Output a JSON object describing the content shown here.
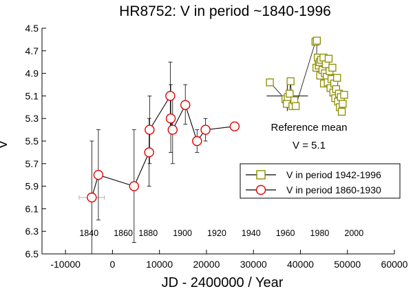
{
  "chart_data": {
    "type": "scatter",
    "title": "HR8752:  V in period ~1840-1996",
    "xlabel": "JD - 2400000 /  Year",
    "ylabel": "V",
    "xlim": [
      -15000,
      60000
    ],
    "ylim": [
      4.5,
      6.5
    ],
    "y_inverted": true,
    "x_ticks": [
      -10000,
      0,
      10000,
      20000,
      30000,
      40000,
      50000,
      60000
    ],
    "x_tick_labels": [
      "-10000",
      "0",
      "10000",
      "20000",
      "30000",
      "40000",
      "50000",
      "60000"
    ],
    "y_ticks": [
      4.5,
      4.7,
      4.9,
      5.1,
      5.3,
      5.5,
      5.7,
      5.9,
      6.1,
      6.3,
      6.5
    ],
    "y_tick_labels": [
      "4.5",
      "4.7",
      "4.9",
      "5.1",
      "5.3",
      "5.5",
      "5.7",
      "5.9",
      "6.1",
      "6.3",
      "6.5"
    ],
    "year_axis": [
      {
        "label": "1840",
        "jd": -5000
      },
      {
        "label": "1860",
        "jd": 2300
      },
      {
        "label": "1880",
        "jd": 7600
      },
      {
        "label": "1900",
        "jd": 14900
      },
      {
        "label": "1920",
        "jd": 22200
      },
      {
        "label": "1940",
        "jd": 29500
      },
      {
        "label": "1960",
        "jd": 36800
      },
      {
        "label": "1980",
        "jd": 44100
      },
      {
        "label": "2000",
        "jd": 51400
      }
    ],
    "legend_position": "right",
    "series": [
      {
        "name": "V in period 1860-1930",
        "marker": "circle",
        "color": "#dd0000",
        "line": true,
        "points": [
          {
            "x": -4400,
            "y": 6.0,
            "ylow": 5.5,
            "yhigh": 6.5,
            "xerr": 2700
          },
          {
            "x": -3000,
            "y": 5.8,
            "ylow": 5.4,
            "yhigh": 6.2
          },
          {
            "x": 4600,
            "y": 5.9,
            "ylow": 5.4,
            "yhigh": 6.4
          },
          {
            "x": 7800,
            "y": 5.6,
            "ylow": 5.3,
            "yhigh": 5.9
          },
          {
            "x": 7900,
            "y": 5.4,
            "ylow": 5.1,
            "yhigh": 5.7
          },
          {
            "x": 12300,
            "y": 5.1,
            "ylow": 4.8,
            "yhigh": 5.4
          },
          {
            "x": 12400,
            "y": 5.3,
            "ylow": 5.0,
            "yhigh": 5.6
          },
          {
            "x": 12800,
            "y": 5.4,
            "ylow": 5.1,
            "yhigh": 5.7
          },
          {
            "x": 15500,
            "y": 5.18,
            "ylow": 5.0,
            "yhigh": 5.35
          },
          {
            "x": 18000,
            "y": 5.5,
            "ylow": 5.4,
            "yhigh": 5.6
          },
          {
            "x": 19800,
            "y": 5.4,
            "ylow": 5.3,
            "yhigh": 5.5
          },
          {
            "x": 26000,
            "y": 5.37
          }
        ]
      },
      {
        "name": "V in period 1942-1996",
        "marker": "square",
        "color": "#8c8c00",
        "line": true,
        "points": [
          {
            "x": 33500,
            "y": 4.98
          },
          {
            "x": 36800,
            "y": 5.13
          },
          {
            "x": 37100,
            "y": 5.17
          },
          {
            "x": 37300,
            "y": 5.11
          },
          {
            "x": 37700,
            "y": 5.08
          },
          {
            "x": 37900,
            "y": 4.97
          },
          {
            "x": 38300,
            "y": 5.19
          },
          {
            "x": 38700,
            "y": 5.14
          },
          {
            "x": 39000,
            "y": 5.19
          },
          {
            "x": 43200,
            "y": 4.62
          },
          {
            "x": 43500,
            "y": 4.61
          },
          {
            "x": 43400,
            "y": 4.85
          },
          {
            "x": 43700,
            "y": 4.76
          },
          {
            "x": 43900,
            "y": 4.83
          },
          {
            "x": 44100,
            "y": 4.8
          },
          {
            "x": 44400,
            "y": 4.78
          },
          {
            "x": 44200,
            "y": 4.92
          },
          {
            "x": 44700,
            "y": 4.87
          },
          {
            "x": 44900,
            "y": 4.76
          },
          {
            "x": 45200,
            "y": 4.9
          },
          {
            "x": 45000,
            "y": 4.99
          },
          {
            "x": 45400,
            "y": 4.82
          },
          {
            "x": 45600,
            "y": 4.93
          },
          {
            "x": 45800,
            "y": 4.98
          },
          {
            "x": 46000,
            "y": 4.77
          },
          {
            "x": 46200,
            "y": 4.88
          },
          {
            "x": 46400,
            "y": 5.03
          },
          {
            "x": 46600,
            "y": 4.95
          },
          {
            "x": 46800,
            "y": 4.85
          },
          {
            "x": 47000,
            "y": 5.07
          },
          {
            "x": 47200,
            "y": 4.99
          },
          {
            "x": 47400,
            "y": 5.12
          },
          {
            "x": 47600,
            "y": 5.04
          },
          {
            "x": 47800,
            "y": 4.94
          },
          {
            "x": 48000,
            "y": 5.15
          },
          {
            "x": 48200,
            "y": 5.08
          },
          {
            "x": 48400,
            "y": 5.2
          },
          {
            "x": 48600,
            "y": 5.11
          },
          {
            "x": 48800,
            "y": 5.24
          },
          {
            "x": 49000,
            "y": 5.17
          },
          {
            "x": 49300,
            "y": 5.09
          }
        ]
      }
    ],
    "reference_mean": {
      "value": 5.1,
      "x_start": 32800,
      "x_end": 41600,
      "label_line1": "Reference mean",
      "label_line2": "V = 5.1"
    }
  }
}
